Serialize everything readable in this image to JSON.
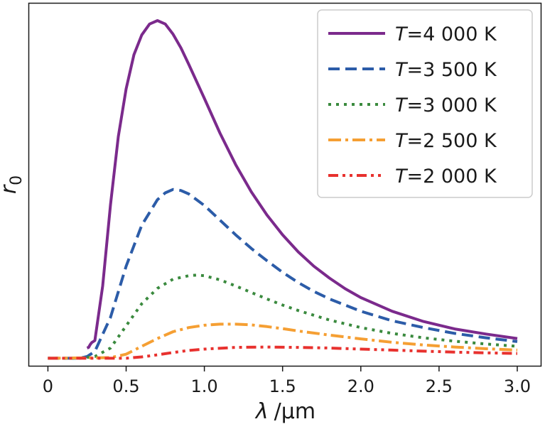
{
  "chart_data": {
    "type": "line",
    "title": "",
    "xlabel_parts": {
      "symbol": "λ",
      "unit": "μm"
    },
    "ylabel_parts": {
      "symbol": "r",
      "sub": "0"
    },
    "xlim": [
      -0.12,
      3.15
    ],
    "ylim": [
      -0.22,
      10.4
    ],
    "y_ticks_shown": false,
    "x_ticks": [
      "0",
      "0.5",
      "1.0",
      "1.5",
      "2.0",
      "2.5",
      "3.0"
    ],
    "x_tick_values": [
      0,
      0.5,
      1.0,
      1.5,
      2.0,
      2.5,
      3.0
    ],
    "legend_position": "top-right",
    "grid": false,
    "series": [
      {
        "name": "T=4 000 K",
        "label_T": "T",
        "label_rest": "=4 000 K",
        "color": "#7b2a8c",
        "dash": "solid",
        "x": [
          0.25,
          0.26,
          0.27,
          0.28,
          0.3,
          0.35,
          0.4,
          0.45,
          0.5,
          0.55,
          0.6,
          0.65,
          0.7,
          0.75,
          0.8,
          0.85,
          0.9,
          1.0,
          1.1,
          1.2,
          1.3,
          1.4,
          1.5,
          1.6,
          1.7,
          1.8,
          1.9,
          2.0,
          2.2,
          2.4,
          2.6,
          2.8,
          3.0
        ],
        "y": [
          0.3,
          0.32,
          0.4,
          0.46,
          0.52,
          2.12,
          4.5,
          6.5,
          7.9,
          8.9,
          9.48,
          9.8,
          9.9,
          9.8,
          9.5,
          9.1,
          8.62,
          7.62,
          6.6,
          5.68,
          4.88,
          4.2,
          3.62,
          3.12,
          2.7,
          2.35,
          2.04,
          1.78,
          1.38,
          1.08,
          0.86,
          0.71,
          0.58
        ]
      },
      {
        "name": "T=3 500 K",
        "label_T": "T",
        "label_rest": "=3 500 K",
        "color": "#2c5ca8",
        "dash": "dashed",
        "x": [
          0.0,
          0.2,
          0.25,
          0.3,
          0.4,
          0.5,
          0.6,
          0.7,
          0.75,
          0.8,
          0.85,
          0.9,
          1.0,
          1.1,
          1.2,
          1.3,
          1.4,
          1.5,
          1.6,
          1.7,
          1.8,
          2.0,
          2.2,
          2.4,
          2.6,
          2.8,
          3.0
        ],
        "y": [
          0.0,
          0.0,
          0.05,
          0.2,
          1.2,
          2.7,
          3.9,
          4.65,
          4.85,
          4.95,
          4.92,
          4.82,
          4.48,
          4.05,
          3.62,
          3.22,
          2.86,
          2.52,
          2.22,
          1.96,
          1.74,
          1.38,
          1.1,
          0.9,
          0.73,
          0.6,
          0.49
        ]
      },
      {
        "name": "T=3 000 K",
        "label_T": "T",
        "label_rest": "=3 000 K",
        "color": "#3a8a3e",
        "dash": "dotted",
        "x": [
          0.0,
          0.2,
          0.3,
          0.4,
          0.5,
          0.6,
          0.7,
          0.8,
          0.9,
          0.95,
          1.0,
          1.1,
          1.2,
          1.3,
          1.4,
          1.5,
          1.6,
          1.8,
          2.0,
          2.2,
          2.4,
          2.6,
          2.8,
          3.0
        ],
        "y": [
          0.0,
          0.0,
          0.05,
          0.3,
          0.95,
          1.6,
          2.05,
          2.32,
          2.42,
          2.44,
          2.42,
          2.3,
          2.12,
          1.93,
          1.74,
          1.56,
          1.4,
          1.12,
          0.9,
          0.73,
          0.6,
          0.5,
          0.42,
          0.35
        ]
      },
      {
        "name": "T=2 500 K",
        "label_T": "T",
        "label_rest": "=2 500 K",
        "color": "#f59f33",
        "dash": "dashdot",
        "x": [
          0.0,
          0.4,
          0.5,
          0.6,
          0.7,
          0.8,
          0.9,
          1.0,
          1.1,
          1.2,
          1.3,
          1.4,
          1.5,
          1.6,
          1.8,
          2.0,
          2.2,
          2.4,
          2.6,
          2.8,
          3.0
        ],
        "y": [
          0.0,
          0.02,
          0.12,
          0.35,
          0.58,
          0.78,
          0.9,
          0.97,
          1.0,
          1.0,
          0.98,
          0.93,
          0.87,
          0.8,
          0.68,
          0.57,
          0.47,
          0.39,
          0.33,
          0.28,
          0.24
        ]
      },
      {
        "name": "T=2 000 K",
        "label_T": "T",
        "label_rest": "=2 000 K",
        "color": "#e8312e",
        "dash": "dashdotdot",
        "x": [
          0.0,
          0.5,
          0.6,
          0.7,
          0.8,
          0.9,
          1.0,
          1.2,
          1.4,
          1.6,
          1.8,
          2.0,
          2.2,
          2.4,
          2.6,
          2.8,
          3.0
        ],
        "y": [
          0.0,
          0.0,
          0.04,
          0.1,
          0.17,
          0.23,
          0.27,
          0.32,
          0.33,
          0.32,
          0.3,
          0.27,
          0.24,
          0.21,
          0.18,
          0.16,
          0.14
        ]
      }
    ]
  }
}
